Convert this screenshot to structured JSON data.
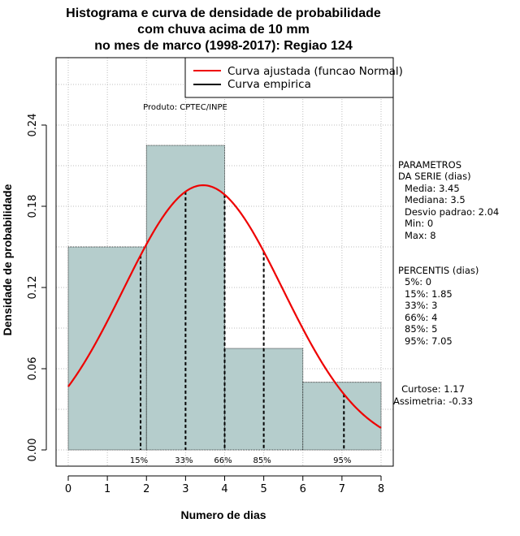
{
  "chart_data": {
    "type": "histogram",
    "title": [
      "Histograma e curva de densidade de probabilidade",
      "com chuva acima de 10 mm",
      "no mes de marco (1998-2017): Regiao 124"
    ],
    "xlabel": "Numero de dias",
    "ylabel": "Densidade de probabilidade",
    "xlim": [
      0,
      8
    ],
    "ylim": [
      0,
      0.24
    ],
    "xticks": [
      "0",
      "1",
      "2",
      "3",
      "4",
      "5",
      "6",
      "7",
      "8"
    ],
    "yticks": [
      "0.00",
      "0.06",
      "0.12",
      "0.18",
      "0.24"
    ],
    "bins": [
      {
        "from": 0,
        "to": 2,
        "density": 0.15
      },
      {
        "from": 2,
        "to": 4,
        "density": 0.225
      },
      {
        "from": 4,
        "to": 6,
        "density": 0.075
      },
      {
        "from": 6,
        "to": 8,
        "density": 0.05
      }
    ],
    "fit": {
      "name": "Curva ajustada (funcao Normal)",
      "mean": 3.45,
      "sd": 2.04,
      "color": "#ee0000"
    },
    "empirical": {
      "name": "Curva empirica",
      "color": "#000000"
    },
    "percentile_lines": [
      {
        "label": "15%",
        "x": 1.85
      },
      {
        "label": "33%",
        "x": 3
      },
      {
        "label": "66%",
        "x": 4
      },
      {
        "label": "85%",
        "x": 5
      },
      {
        "label": "95%",
        "x": 7.05
      }
    ],
    "product_note": "Produto: CPTEC/INPE",
    "bar_color": "#b5cdcc",
    "grid": true
  },
  "stats_panel": {
    "params_header": [
      "PARAMETROS",
      "DA SERIE (dias)"
    ],
    "params": [
      "Media: 3.45",
      "Mediana: 3.5",
      "Desvio padrao: 2.04",
      "Min: 0",
      "Max: 8"
    ],
    "perc_header": "PERCENTIS (dias)",
    "percentiles": [
      "5%: 0",
      "15%: 1.85",
      "33%: 3",
      "66%: 4",
      "85%: 5",
      "95%: 7.05"
    ],
    "shape": [
      "Curtose: 1.17",
      "Assimetria: -0.33"
    ]
  }
}
